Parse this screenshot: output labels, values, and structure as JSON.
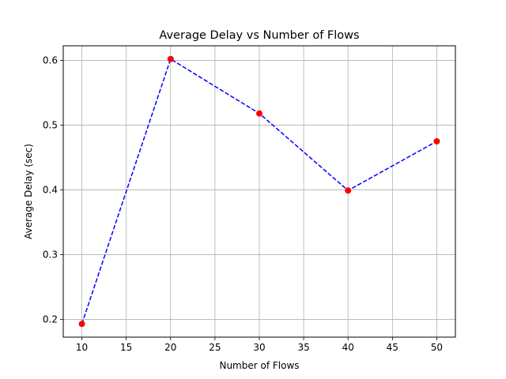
{
  "chart_data": {
    "type": "line",
    "title": "Average Delay vs Number of Flows",
    "xlabel": "Number of Flows",
    "ylabel": "Average Delay (sec)",
    "x": [
      10,
      20,
      30,
      40,
      50
    ],
    "series": [
      {
        "values": [
          0.193,
          0.602,
          0.518,
          0.399,
          0.475
        ],
        "line_color": "#0000ff",
        "line_style": "dashed",
        "marker_color": "#ff0000",
        "marker": "circle"
      }
    ],
    "xlim": [
      7.9,
      52.1
    ],
    "ylim": [
      0.1725,
      0.6225
    ],
    "xticks": [
      10,
      15,
      20,
      25,
      30,
      35,
      40,
      45,
      50
    ],
    "yticks": [
      0.2,
      0.3,
      0.4,
      0.5,
      0.6
    ],
    "grid": true,
    "grid_color": "#b0b0b0",
    "legend": false
  }
}
